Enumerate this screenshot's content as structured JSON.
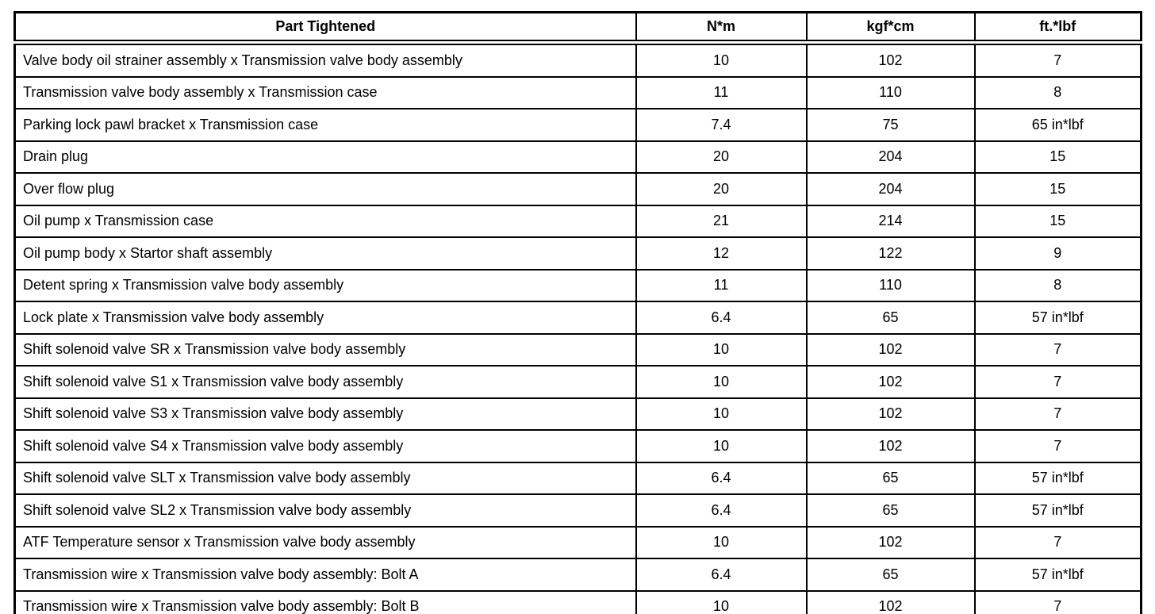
{
  "colors": {
    "border": "#000000",
    "background": "#ffffff",
    "text": "#000000"
  },
  "table": {
    "headers": [
      "Part Tightened",
      "N*m",
      "kgf*cm",
      "ft.*lbf"
    ],
    "rows": [
      [
        "Valve body oil strainer assembly x Transmission valve body assembly",
        "10",
        "102",
        "7"
      ],
      [
        "Transmission valve body assembly x Transmission case",
        "11",
        "110",
        "8"
      ],
      [
        "Parking lock pawl bracket x Transmission case",
        "7.4",
        "75",
        "65 in*lbf"
      ],
      [
        "Drain plug",
        "20",
        "204",
        "15"
      ],
      [
        "Over flow plug",
        "20",
        "204",
        "15"
      ],
      [
        "Oil pump x Transmission case",
        "21",
        "214",
        "15"
      ],
      [
        "Oil pump body x Startor shaft assembly",
        "12",
        "122",
        "9"
      ],
      [
        "Detent spring x Transmission valve body assembly",
        "11",
        "110",
        "8"
      ],
      [
        "Lock plate x Transmission valve body assembly",
        "6.4",
        "65",
        "57 in*lbf"
      ],
      [
        "Shift solenoid valve SR x Transmission valve body assembly",
        "10",
        "102",
        "7"
      ],
      [
        "Shift solenoid valve S1 x Transmission valve body assembly",
        "10",
        "102",
        "7"
      ],
      [
        "Shift solenoid valve S3 x Transmission valve body assembly",
        "10",
        "102",
        "7"
      ],
      [
        "Shift solenoid valve S4 x Transmission valve body assembly",
        "10",
        "102",
        "7"
      ],
      [
        "Shift solenoid valve SLT x Transmission valve body assembly",
        "6.4",
        "65",
        "57 in*lbf"
      ],
      [
        "Shift solenoid valve SL2 x Transmission valve body assembly",
        "6.4",
        "65",
        "57 in*lbf"
      ],
      [
        "ATF Temperature sensor x Transmission valve body assembly",
        "10",
        "102",
        "7"
      ],
      [
        "Transmission wire x Transmission valve body assembly: Bolt A",
        "6.4",
        "65",
        "57 in*lbf"
      ],
      [
        "Transmission wire x Transmission valve body assembly: Bolt B",
        "10",
        "102",
        "7"
      ]
    ]
  }
}
